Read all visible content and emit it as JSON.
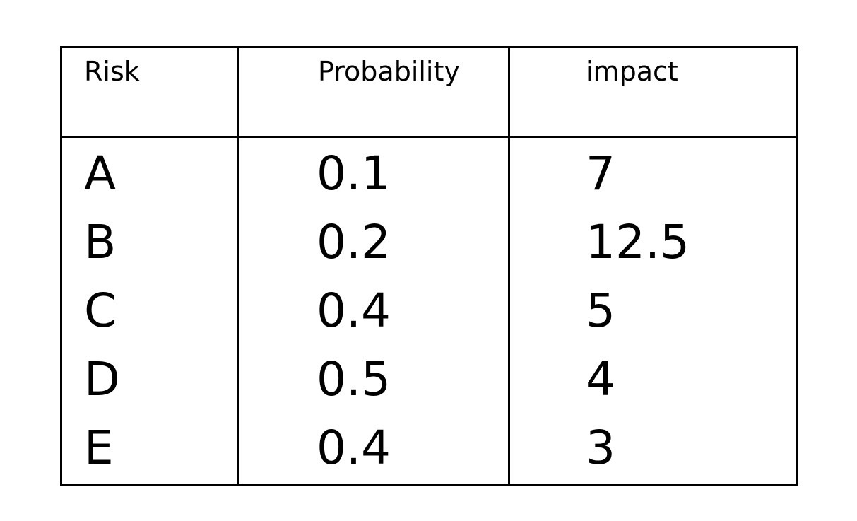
{
  "table": {
    "headers": [
      "Risk",
      "Probability",
      "impact"
    ],
    "rows": [
      [
        "A",
        "0.1",
        "7"
      ],
      [
        "B",
        "0.2",
        "12.5"
      ],
      [
        "C",
        "0.4",
        "5"
      ],
      [
        "D",
        "0.5",
        "4"
      ],
      [
        "E",
        "0.4",
        "3"
      ]
    ]
  }
}
